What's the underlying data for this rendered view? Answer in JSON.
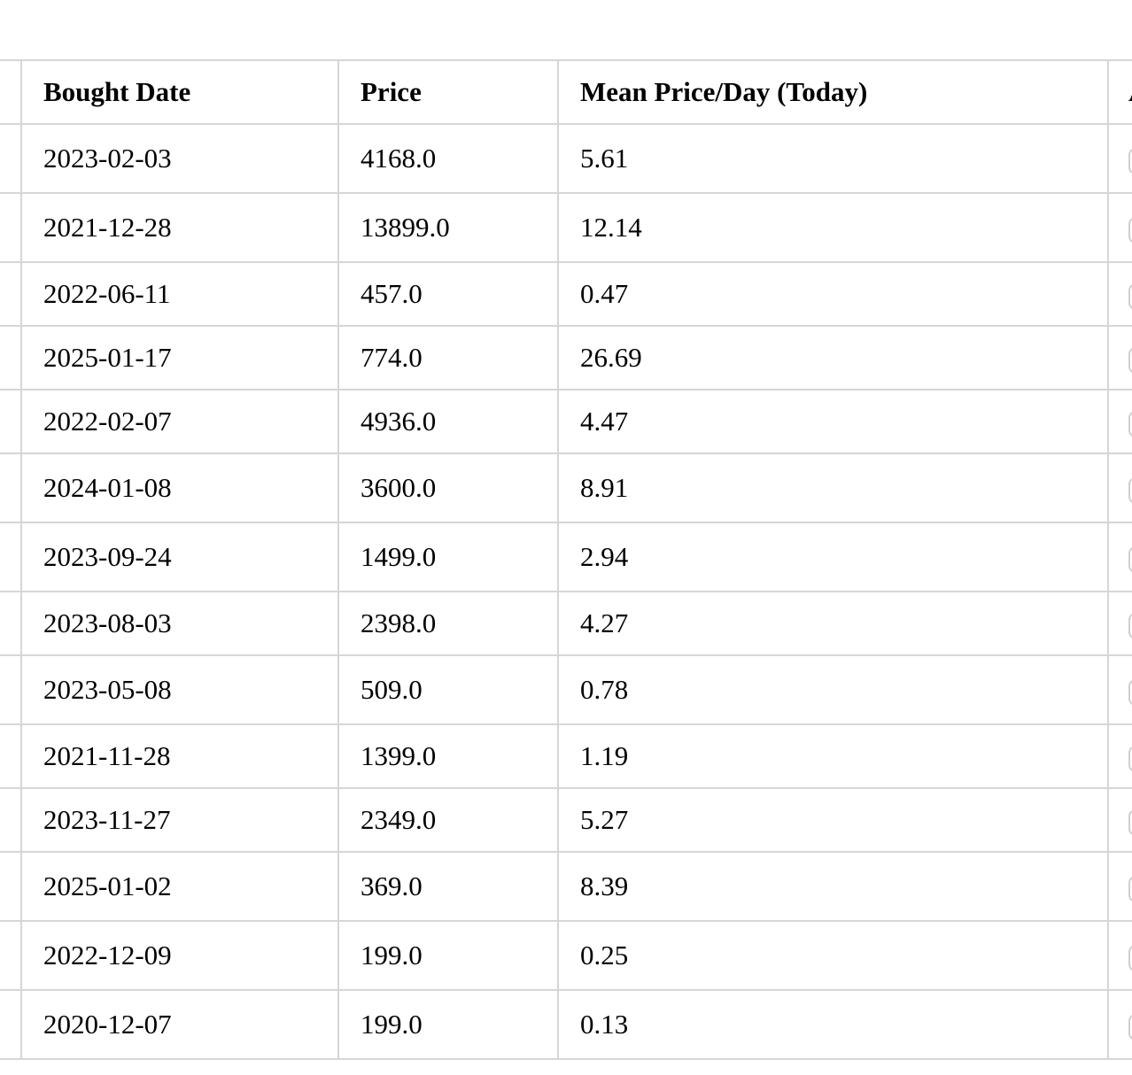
{
  "table": {
    "columns": {
      "bought_date": "Bought Date",
      "price": "Price",
      "mean_price_day": "Mean Price/Day (Today)",
      "action": "A"
    },
    "rows": [
      {
        "bought_date": "2023-02-03",
        "price": "4168.0",
        "mean_price_day": "5.61"
      },
      {
        "bought_date": "2021-12-28",
        "price": "13899.0",
        "mean_price_day": "12.14"
      },
      {
        "bought_date": "2022-06-11",
        "price": "457.0",
        "mean_price_day": "0.47"
      },
      {
        "bought_date": "2025-01-17",
        "price": "774.0",
        "mean_price_day": "26.69"
      },
      {
        "bought_date": "2022-02-07",
        "price": "4936.0",
        "mean_price_day": "4.47"
      },
      {
        "bought_date": "2024-01-08",
        "price": "3600.0",
        "mean_price_day": "8.91"
      },
      {
        "bought_date": "2023-09-24",
        "price": "1499.0",
        "mean_price_day": "2.94"
      },
      {
        "bought_date": "2023-08-03",
        "price": "2398.0",
        "mean_price_day": "4.27"
      },
      {
        "bought_date": "2023-05-08",
        "price": "509.0",
        "mean_price_day": "0.78"
      },
      {
        "bought_date": "2021-11-28",
        "price": "1399.0",
        "mean_price_day": "1.19"
      },
      {
        "bought_date": "2023-11-27",
        "price": "2349.0",
        "mean_price_day": "5.27"
      },
      {
        "bought_date": "2025-01-02",
        "price": "369.0",
        "mean_price_day": "8.39"
      },
      {
        "bought_date": "2022-12-09",
        "price": "199.0",
        "mean_price_day": "0.25"
      },
      {
        "bought_date": "2020-12-07",
        "price": "199.0",
        "mean_price_day": "0.13"
      }
    ]
  }
}
